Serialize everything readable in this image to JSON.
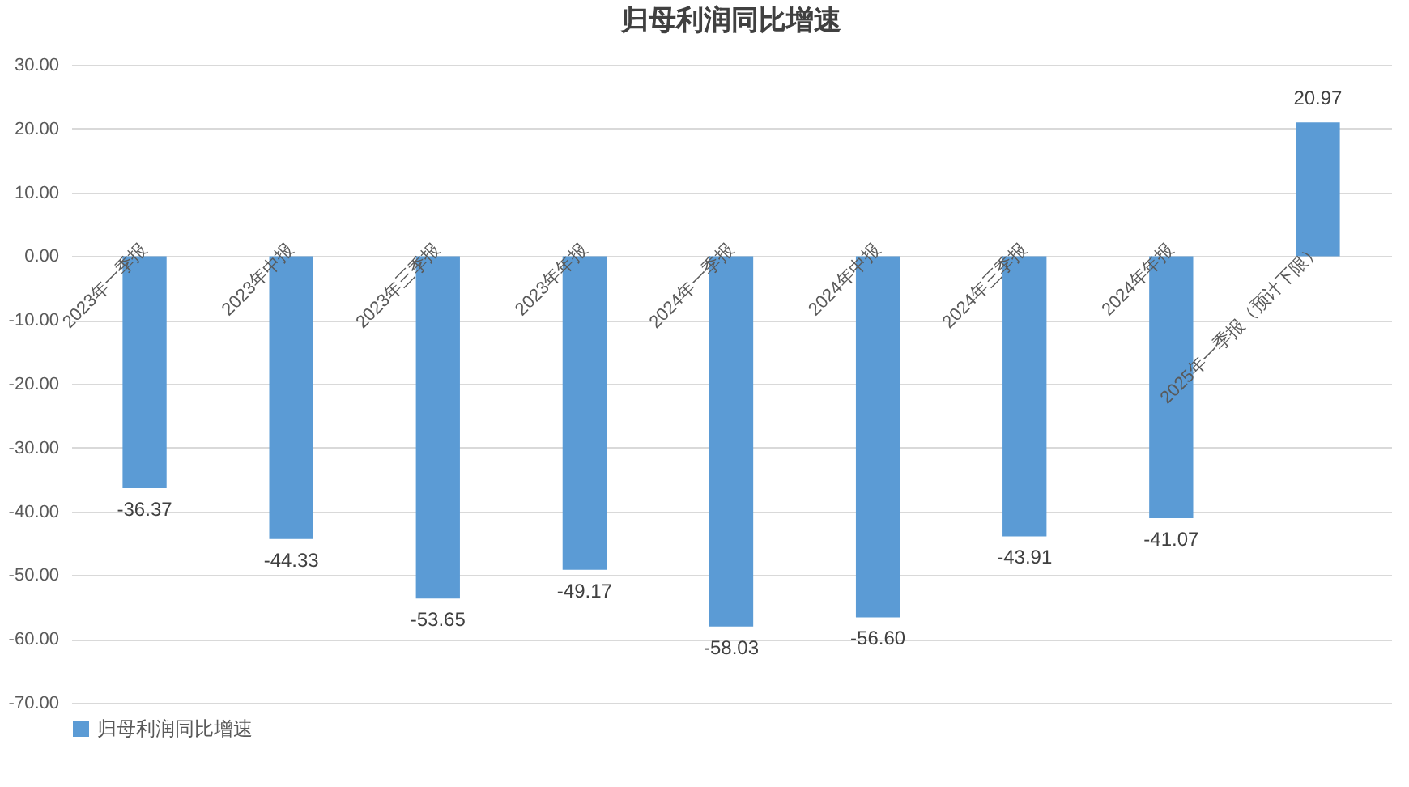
{
  "chart_data": {
    "type": "bar",
    "title": "归母利润同比增速",
    "categories": [
      "2023年一季报",
      "2023年中报",
      "2023年三季报",
      "2023年年报",
      "2024年一季报",
      "2024年中报",
      "2024年三季报",
      "2024年年报",
      "2025年一季报（预计下限）"
    ],
    "series": [
      {
        "name": "归母利润同比增速",
        "color": "#5b9bd5",
        "values": [
          -36.37,
          -44.33,
          -53.65,
          -49.17,
          -58.03,
          -56.6,
          -43.91,
          -41.07,
          20.97
        ]
      }
    ],
    "value_labels": [
      "-36.37",
      "-44.33",
      "-53.65",
      "-49.17",
      "-58.03",
      "-56.60",
      "-43.91",
      "-41.07",
      "20.97"
    ],
    "ylim": [
      -70,
      30
    ],
    "yticks": [
      {
        "value": -70,
        "label": "-70.00"
      },
      {
        "value": -60,
        "label": "-60.00"
      },
      {
        "value": -50,
        "label": "-50.00"
      },
      {
        "value": -40,
        "label": "-40.00"
      },
      {
        "value": -30,
        "label": "-30.00"
      },
      {
        "value": -20,
        "label": "-20.00"
      },
      {
        "value": -10,
        "label": "-10.00"
      },
      {
        "value": 0,
        "label": "0.00"
      },
      {
        "value": 10,
        "label": "10.00"
      },
      {
        "value": 20,
        "label": "20.00"
      },
      {
        "value": 30,
        "label": "30.00"
      }
    ],
    "grid": "y",
    "legend": "bottom"
  }
}
